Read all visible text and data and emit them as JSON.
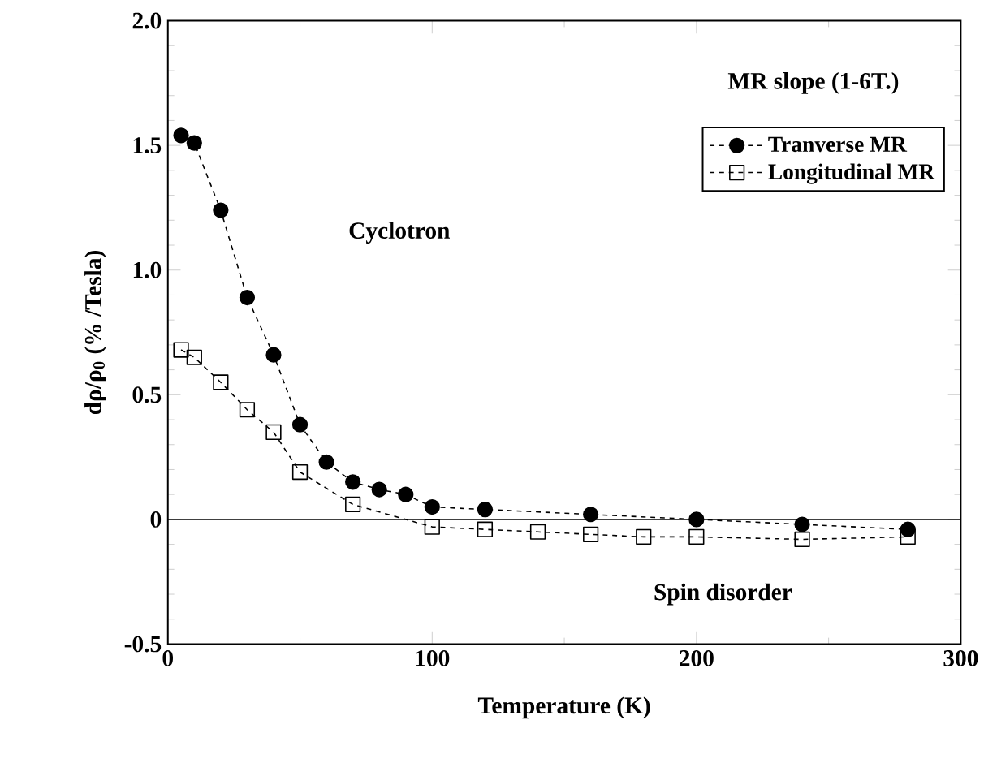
{
  "chart_data": {
    "type": "line",
    "xlabel": "Temperature (K)",
    "ylabel": "dρ/ρ$_{0}$ (% /Tesla)",
    "xlim": [
      0,
      300
    ],
    "ylim": [
      -0.5,
      2.0
    ],
    "xticks": [
      0,
      100,
      200,
      300
    ],
    "yticks": [
      -0.5,
      0,
      0.5,
      {
        "value": 1.0,
        "label": "1.0"
      },
      1.5,
      {
        "value": 2.0,
        "label": "2.0"
      }
    ],
    "legend": "top right",
    "line_style": "dashed",
    "grid": false,
    "ref_lines": [
      {
        "axis": "y",
        "value": 0,
        "label": null,
        "color": "#000000",
        "line_style": "solid"
      }
    ],
    "annotations": [
      "MR slope (1-6T.)",
      "Cyclotron",
      "Spin disorder"
    ],
    "series": [
      {
        "name": "Tranverse MR",
        "color": "#000000",
        "marker": "circle",
        "x": [
          5,
          10,
          20,
          30,
          40,
          50,
          60,
          70,
          80,
          90,
          100,
          120,
          160,
          200,
          240,
          280
        ],
        "values": [
          1.54,
          1.51,
          1.24,
          0.89,
          0.66,
          0.38,
          0.23,
          0.15,
          0.12,
          0.1,
          0.05,
          0.04,
          0.02,
          0.0,
          -0.02,
          -0.04
        ]
      },
      {
        "name": "Longitudinal MR",
        "color": "#000000",
        "marker": "square",
        "x": [
          5,
          10,
          20,
          30,
          40,
          50,
          70,
          100,
          120,
          140,
          160,
          180,
          200,
          240,
          280
        ],
        "values": [
          0.68,
          0.65,
          0.55,
          0.44,
          0.35,
          0.19,
          0.06,
          -0.03,
          -0.04,
          -0.05,
          -0.06,
          -0.07,
          -0.07,
          -0.08,
          -0.07
        ]
      }
    ]
  }
}
